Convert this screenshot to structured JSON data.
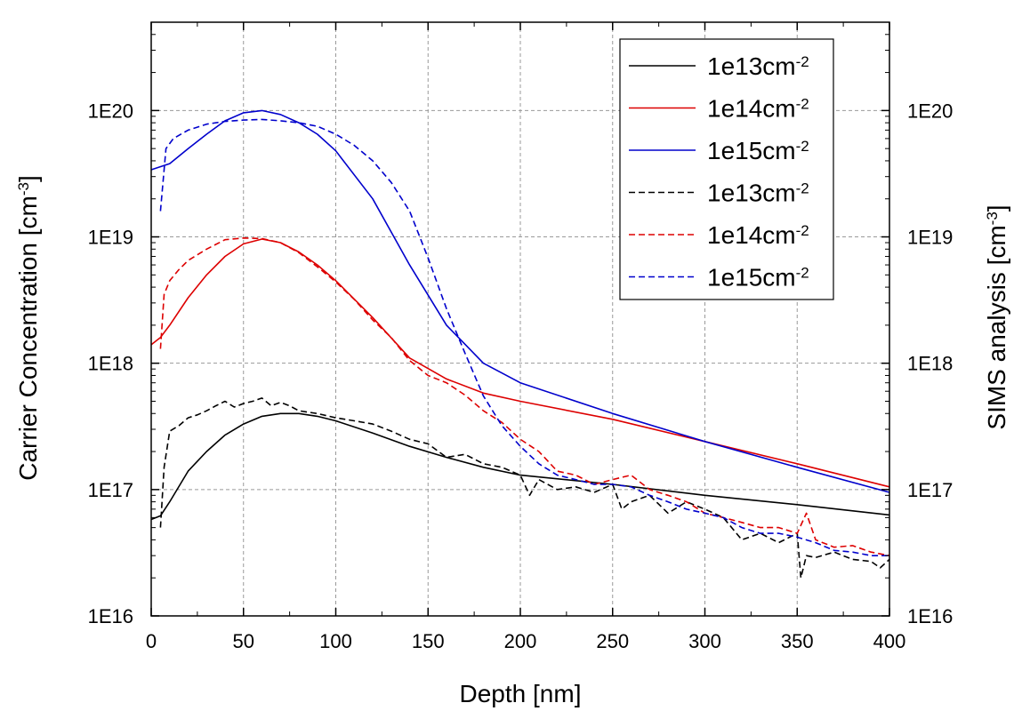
{
  "chart_data": {
    "type": "line",
    "xlabel": "Depth [nm]",
    "ylabel_left": {
      "text": "Carrier Concentration [cm",
      "sup": "-3",
      "close": "]"
    },
    "ylabel_right": {
      "text": "SIMS analysis [cm",
      "sup": "-3",
      "close": "]"
    },
    "xlim": [
      0,
      400
    ],
    "ylim": [
      1e+16,
      5e+20
    ],
    "yscale": "log",
    "grid": true,
    "legend_position": "top-right",
    "x_ticks": [
      "0",
      "50",
      "100",
      "150",
      "200",
      "250",
      "300",
      "350",
      "400"
    ],
    "y_ticks": [
      {
        "value": 1e+16,
        "label": "1E16"
      },
      {
        "value": 1e+17,
        "label": "1E17"
      },
      {
        "value": 1e+18,
        "label": "1E18"
      },
      {
        "value": 1e+19,
        "label": "1E19"
      },
      {
        "value": 1e+20,
        "label": "1E20"
      }
    ],
    "series": [
      {
        "name": "1e13cm",
        "sup": "-2",
        "color": "#000000",
        "style": "solid",
        "points": [
          [
            0,
            5.8e+16
          ],
          [
            5,
            6.2e+16
          ],
          [
            10,
            8e+16
          ],
          [
            20,
            1.4e+17
          ],
          [
            30,
            2e+17
          ],
          [
            40,
            2.7e+17
          ],
          [
            50,
            3.3e+17
          ],
          [
            60,
            3.8e+17
          ],
          [
            70,
            4e+17
          ],
          [
            80,
            4e+17
          ],
          [
            90,
            3.8e+17
          ],
          [
            100,
            3.5e+17
          ],
          [
            120,
            2.8e+17
          ],
          [
            140,
            2.2e+17
          ],
          [
            160,
            1.8e+17
          ],
          [
            180,
            1.5e+17
          ],
          [
            200,
            1.3e+17
          ],
          [
            250,
            1.1e+17
          ],
          [
            300,
            9e+16
          ],
          [
            350,
            7.6e+16
          ],
          [
            400,
            6.3e+16
          ]
        ]
      },
      {
        "name": "1e14cm",
        "sup": "-2",
        "color": "#dd0000",
        "style": "solid",
        "points": [
          [
            0,
            1.4e+18
          ],
          [
            5,
            1.6e+18
          ],
          [
            10,
            2e+18
          ],
          [
            20,
            3.3e+18
          ],
          [
            30,
            5e+18
          ],
          [
            40,
            7e+18
          ],
          [
            50,
            8.8e+18
          ],
          [
            60,
            9.6e+18
          ],
          [
            70,
            9e+18
          ],
          [
            80,
            7.6e+18
          ],
          [
            90,
            6e+18
          ],
          [
            100,
            4.5e+18
          ],
          [
            120,
            2.3e+18
          ],
          [
            140,
            1.1e+18
          ],
          [
            160,
            7.5e+17
          ],
          [
            180,
            5.8e+17
          ],
          [
            200,
            5e+17
          ],
          [
            250,
            3.6e+17
          ],
          [
            300,
            2.4e+17
          ],
          [
            350,
            1.6e+17
          ],
          [
            400,
            1.05e+17
          ]
        ]
      },
      {
        "name": "1e15cm",
        "sup": "-2",
        "color": "#0000cc",
        "style": "solid",
        "points": [
          [
            0,
            3.4e+19
          ],
          [
            10,
            3.8e+19
          ],
          [
            20,
            5e+19
          ],
          [
            30,
            6.5e+19
          ],
          [
            40,
            8.3e+19
          ],
          [
            50,
            9.6e+19
          ],
          [
            60,
            1e+20
          ],
          [
            70,
            9.3e+19
          ],
          [
            80,
            8e+19
          ],
          [
            90,
            6.5e+19
          ],
          [
            100,
            4.8e+19
          ],
          [
            120,
            2e+19
          ],
          [
            140,
            6e+18
          ],
          [
            160,
            2e+18
          ],
          [
            180,
            1e+18
          ],
          [
            200,
            7e+17
          ],
          [
            250,
            4e+17
          ],
          [
            300,
            2.4e+17
          ],
          [
            350,
            1.5e+17
          ],
          [
            400,
            9.5e+16
          ]
        ]
      },
      {
        "name": "1e13cm",
        "sup": "-2",
        "color": "#000000",
        "style": "dashed",
        "points": [
          [
            5,
            5e+16
          ],
          [
            7,
            1.5e+17
          ],
          [
            10,
            2.9e+17
          ],
          [
            15,
            3.2e+17
          ],
          [
            20,
            3.7e+17
          ],
          [
            25,
            3.9e+17
          ],
          [
            30,
            4.2e+17
          ],
          [
            35,
            4.6e+17
          ],
          [
            40,
            5e+17
          ],
          [
            45,
            4.5e+17
          ],
          [
            50,
            4.8e+17
          ],
          [
            55,
            5e+17
          ],
          [
            60,
            5.3e+17
          ],
          [
            65,
            4.6e+17
          ],
          [
            70,
            4.9e+17
          ],
          [
            75,
            4.6e+17
          ],
          [
            80,
            4.2e+17
          ],
          [
            90,
            4e+17
          ],
          [
            100,
            3.7e+17
          ],
          [
            110,
            3.5e+17
          ],
          [
            120,
            3.3e+17
          ],
          [
            130,
            2.9e+17
          ],
          [
            140,
            2.5e+17
          ],
          [
            150,
            2.3e+17
          ],
          [
            160,
            1.8e+17
          ],
          [
            170,
            1.9e+17
          ],
          [
            180,
            1.6e+17
          ],
          [
            190,
            1.5e+17
          ],
          [
            200,
            1.3e+17
          ],
          [
            205,
            9e+16
          ],
          [
            210,
            1.2e+17
          ],
          [
            220,
            1e+17
          ],
          [
            230,
            1.05e+17
          ],
          [
            240,
            9.5e+16
          ],
          [
            250,
            1.1e+17
          ],
          [
            255,
            7e+16
          ],
          [
            260,
            8e+16
          ],
          [
            270,
            9e+16
          ],
          [
            280,
            6.5e+16
          ],
          [
            290,
            8e+16
          ],
          [
            300,
            7e+16
          ],
          [
            310,
            6e+16
          ],
          [
            320,
            4e+16
          ],
          [
            330,
            4.5e+16
          ],
          [
            340,
            3.8e+16
          ],
          [
            350,
            4.5e+16
          ],
          [
            352,
            2e+16
          ],
          [
            355,
            3e+16
          ],
          [
            360,
            2.9e+16
          ],
          [
            370,
            3.2e+16
          ],
          [
            380,
            2.8e+16
          ],
          [
            390,
            2.7e+16
          ],
          [
            395,
            2.4e+16
          ],
          [
            400,
            2.8e+16
          ]
        ]
      },
      {
        "name": "1e14cm",
        "sup": "-2",
        "color": "#dd0000",
        "style": "dashed",
        "points": [
          [
            5,
            1.3e+18
          ],
          [
            7,
            3.5e+18
          ],
          [
            10,
            4.5e+18
          ],
          [
            15,
            5.5e+18
          ],
          [
            20,
            6.5e+18
          ],
          [
            30,
            8e+18
          ],
          [
            40,
            9.5e+18
          ],
          [
            50,
            9.8e+18
          ],
          [
            60,
            9.7e+18
          ],
          [
            70,
            9e+18
          ],
          [
            80,
            7.5e+18
          ],
          [
            90,
            5.8e+18
          ],
          [
            100,
            4.4e+18
          ],
          [
            110,
            3.2e+18
          ],
          [
            120,
            2.2e+18
          ],
          [
            130,
            1.6e+18
          ],
          [
            140,
            1.05e+18
          ],
          [
            150,
            8e+17
          ],
          [
            160,
            7e+17
          ],
          [
            170,
            5.6e+17
          ],
          [
            180,
            4.2e+17
          ],
          [
            190,
            3.4e+17
          ],
          [
            200,
            2.5e+17
          ],
          [
            210,
            2e+17
          ],
          [
            220,
            1.4e+17
          ],
          [
            230,
            1.3e+17
          ],
          [
            240,
            1.1e+17
          ],
          [
            250,
            1.2e+17
          ],
          [
            260,
            1.3e+17
          ],
          [
            270,
            1e+17
          ],
          [
            280,
            9e+16
          ],
          [
            290,
            8e+16
          ],
          [
            300,
            6.5e+16
          ],
          [
            310,
            6e+16
          ],
          [
            320,
            5.5e+16
          ],
          [
            330,
            5e+16
          ],
          [
            340,
            5e+16
          ],
          [
            350,
            4.5e+16
          ],
          [
            355,
            6.5e+16
          ],
          [
            360,
            4e+16
          ],
          [
            370,
            3.5e+16
          ],
          [
            380,
            3.6e+16
          ],
          [
            390,
            3.2e+16
          ],
          [
            400,
            3e+16
          ]
        ]
      },
      {
        "name": "1e15cm",
        "sup": "-2",
        "color": "#0000cc",
        "style": "dashed",
        "points": [
          [
            5,
            1.6e+19
          ],
          [
            8,
            5e+19
          ],
          [
            12,
            6e+19
          ],
          [
            20,
            7e+19
          ],
          [
            30,
            7.8e+19
          ],
          [
            40,
            8.2e+19
          ],
          [
            50,
            8.4e+19
          ],
          [
            60,
            8.5e+19
          ],
          [
            70,
            8.3e+19
          ],
          [
            80,
            8e+19
          ],
          [
            90,
            7.5e+19
          ],
          [
            100,
            6.5e+19
          ],
          [
            110,
            5.3e+19
          ],
          [
            120,
            4e+19
          ],
          [
            130,
            2.7e+19
          ],
          [
            140,
            1.6e+19
          ],
          [
            150,
            6.8e+18
          ],
          [
            160,
            2.7e+18
          ],
          [
            170,
            1.2e+18
          ],
          [
            180,
            5.5e+17
          ],
          [
            190,
            3.2e+17
          ],
          [
            200,
            2.2e+17
          ],
          [
            210,
            1.6e+17
          ],
          [
            220,
            1.3e+17
          ],
          [
            230,
            1.2e+17
          ],
          [
            240,
            1.1e+17
          ],
          [
            250,
            1.1e+17
          ],
          [
            260,
            1.05e+17
          ],
          [
            270,
            9e+16
          ],
          [
            280,
            8e+16
          ],
          [
            290,
            7e+16
          ],
          [
            300,
            6.5e+16
          ],
          [
            310,
            6e+16
          ],
          [
            320,
            5e+16
          ],
          [
            330,
            4.5e+16
          ],
          [
            340,
            4.5e+16
          ],
          [
            350,
            4.2e+16
          ],
          [
            360,
            3.8e+16
          ],
          [
            370,
            3.3e+16
          ],
          [
            380,
            3.2e+16
          ],
          [
            390,
            3e+16
          ],
          [
            400,
            3e+16
          ]
        ]
      }
    ]
  }
}
